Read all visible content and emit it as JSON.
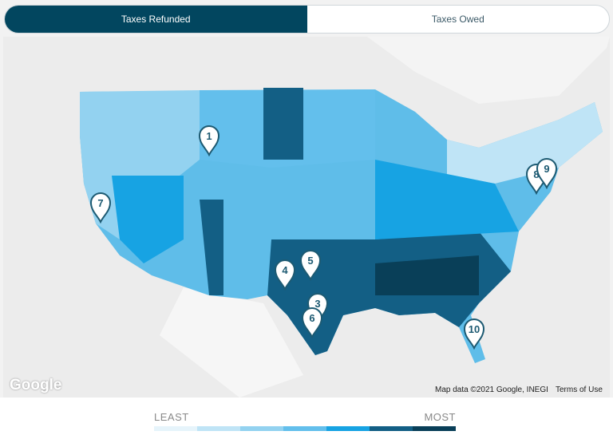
{
  "toggle": {
    "active": "Taxes Refunded",
    "inactive": "Taxes Owed"
  },
  "map": {
    "attribution": "Map data ©2021 Google, INEGI",
    "terms": "Terms of Use",
    "logo": "Google",
    "markers": [
      {
        "n": "8"
      },
      {
        "n": "1"
      },
      {
        "n": "7"
      },
      {
        "n": "4"
      },
      {
        "n": "5"
      },
      {
        "n": "3"
      },
      {
        "n": "6"
      },
      {
        "n": "9"
      },
      {
        "n": "10"
      }
    ]
  },
  "legend": {
    "least": "LEAST",
    "most": "MOST",
    "colors": [
      "#e6f4fb",
      "#bfe4f6",
      "#93d2f0",
      "#63bfec",
      "#17a3e3",
      "#135f85",
      "#093f58"
    ]
  }
}
